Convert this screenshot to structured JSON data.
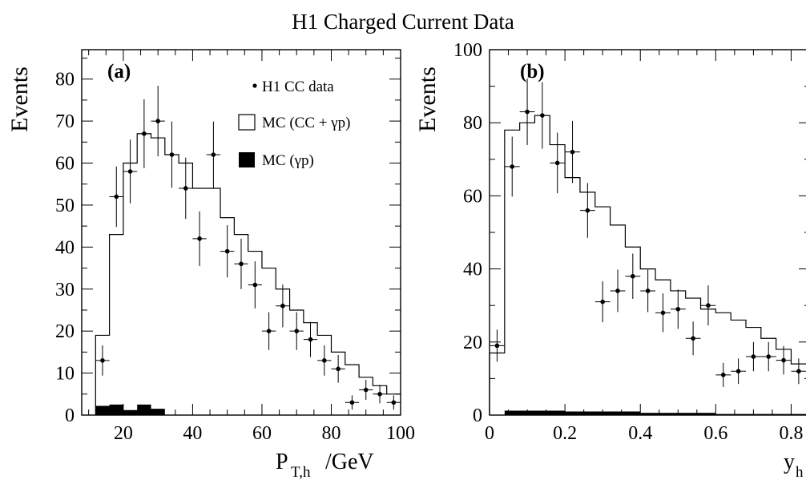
{
  "title": "H1 Charged Current Data",
  "chart_data": [
    {
      "type": "histogram",
      "panel_label": "(a)",
      "ylabel": "Events",
      "xlabel_main": "P",
      "xlabel_sub": "T,h",
      "xlabel_unit": "/GeV",
      "xlim": [
        8,
        100
      ],
      "ylim": [
        0,
        87
      ],
      "xticks": [
        20,
        40,
        60,
        80,
        100
      ],
      "yticks": [
        0,
        10,
        20,
        30,
        40,
        50,
        60,
        70,
        80
      ],
      "legend": [
        {
          "type": "data",
          "label": "H1 CC data"
        },
        {
          "type": "open",
          "label": "MC (CC + γp)"
        },
        {
          "type": "filled",
          "label": "MC (γp)"
        }
      ],
      "mc_total": {
        "edges": [
          12,
          16,
          20,
          24,
          28,
          32,
          36,
          40,
          44,
          48,
          52,
          56,
          60,
          64,
          68,
          72,
          76,
          80,
          84,
          88,
          92,
          96,
          100
        ],
        "values": [
          19,
          43,
          60,
          67,
          66,
          62,
          60,
          54,
          54,
          47,
          43,
          39,
          35,
          30,
          25,
          22,
          19,
          15,
          12,
          9,
          7,
          5
        ]
      },
      "mc_gp": {
        "edges": [
          12,
          16,
          20,
          24,
          28,
          32
        ],
        "values": [
          2.2,
          2.5,
          1.2,
          2.5,
          1.5
        ]
      },
      "data": {
        "x": [
          14,
          18,
          22,
          26,
          30,
          34,
          38,
          42,
          46,
          50,
          54,
          58,
          62,
          66,
          70,
          74,
          78,
          82,
          86,
          90,
          94,
          98
        ],
        "y": [
          13,
          52,
          58,
          67,
          70,
          62,
          54,
          42,
          62,
          39,
          36,
          31,
          20,
          26,
          20,
          18,
          13,
          11,
          3,
          6,
          5,
          3
        ],
        "err": [
          3.6,
          7.2,
          7.6,
          8.2,
          8.4,
          7.9,
          7.3,
          6.5,
          7.9,
          6.2,
          6.0,
          5.6,
          4.5,
          5.1,
          4.5,
          4.2,
          3.6,
          3.3,
          1.7,
          2.4,
          2.2,
          1.7
        ]
      }
    },
    {
      "type": "histogram",
      "panel_label": "(b)",
      "ylabel": "Events",
      "xlabel_main": "y",
      "xlabel_sub": "h",
      "xlim": [
        0,
        0.85
      ],
      "ylim": [
        0,
        100
      ],
      "xticks": [
        0,
        0.2,
        0.4,
        0.6,
        0.8
      ],
      "xticklabels": [
        "0",
        "0.2",
        "0.4",
        "0.6",
        "0.8"
      ],
      "yticks": [
        0,
        20,
        40,
        60,
        80,
        100
      ],
      "mc_total": {
        "edges": [
          0,
          0.04,
          0.08,
          0.12,
          0.16,
          0.2,
          0.24,
          0.28,
          0.32,
          0.36,
          0.4,
          0.44,
          0.48,
          0.52,
          0.56,
          0.6,
          0.64,
          0.68,
          0.72,
          0.76,
          0.8,
          0.84
        ],
        "values": [
          17,
          78,
          80,
          82,
          74,
          65,
          61,
          57,
          52,
          46,
          40,
          37,
          34,
          32,
          29,
          28,
          26,
          24,
          21,
          18,
          14
        ]
      },
      "mc_gp": {
        "edges": [
          0.04,
          0.2,
          0.4,
          0.6,
          0.84
        ],
        "values": [
          1.2,
          1.0,
          0.6,
          0.3
        ]
      },
      "data": {
        "x": [
          0.02,
          0.06,
          0.1,
          0.14,
          0.18,
          0.22,
          0.26,
          0.3,
          0.34,
          0.38,
          0.42,
          0.46,
          0.5,
          0.54,
          0.58,
          0.62,
          0.66,
          0.7,
          0.74,
          0.78,
          0.82
        ],
        "y": [
          19,
          68,
          83,
          82,
          69,
          72,
          56,
          31,
          34,
          38,
          34,
          28,
          29,
          21,
          30,
          11,
          12,
          16,
          16,
          15,
          12
        ],
        "err": [
          4.4,
          8.2,
          9.1,
          9.1,
          8.3,
          8.5,
          7.5,
          5.6,
          5.8,
          6.2,
          5.8,
          5.3,
          5.4,
          4.6,
          5.5,
          3.3,
          3.5,
          4.0,
          4.0,
          3.9,
          3.5
        ]
      }
    }
  ]
}
